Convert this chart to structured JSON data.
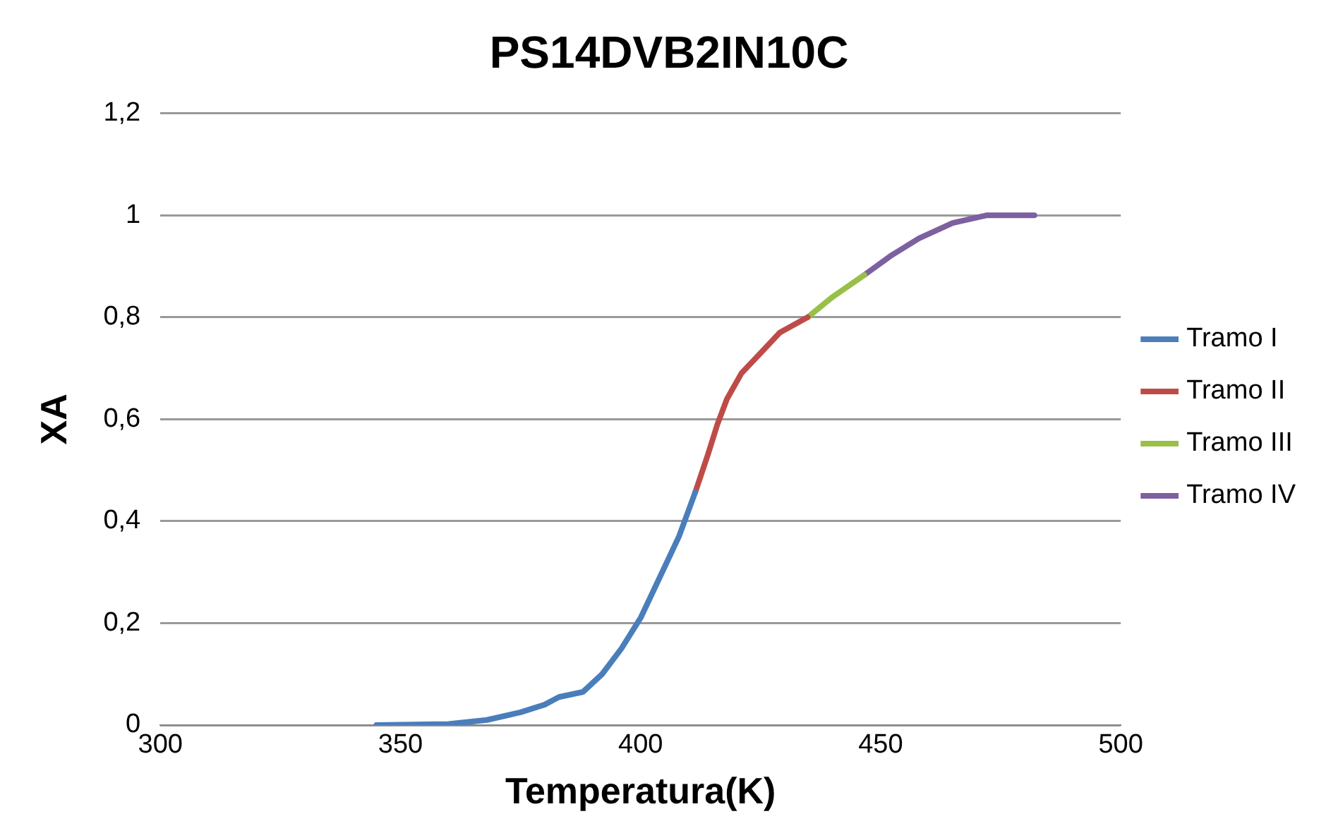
{
  "chart_data": {
    "type": "line",
    "title": "PS14DVB2IN10C",
    "xlabel": "Temperatura(K)",
    "ylabel": "XA",
    "xlim": [
      300,
      500
    ],
    "xticks": [
      300,
      350,
      400,
      450,
      500
    ],
    "ylim": [
      0,
      1.2
    ],
    "yticks": [
      0,
      {
        "value": 0.2,
        "label": "0,2"
      },
      {
        "value": 0.4,
        "label": "0,4"
      },
      {
        "value": 0.6,
        "label": "0,6"
      },
      {
        "value": 0.8,
        "label": "0,8"
      },
      1,
      {
        "value": 1.2,
        "label": "1,2"
      }
    ],
    "grid": "y",
    "legend": "right",
    "marker": "none",
    "series": [
      {
        "name": "Tramo I",
        "color": "#4a7ebb",
        "x": [
          345,
          360,
          368,
          375,
          380,
          383,
          388,
          392,
          396,
          400,
          404,
          408,
          411.4
        ],
        "values": [
          0,
          0.002,
          0.01,
          0.025,
          0.04,
          0.055,
          0.065,
          0.1,
          0.15,
          0.21,
          0.29,
          0.37,
          0.457
        ]
      },
      {
        "name": "Tramo II",
        "color": "#be4b48",
        "x": [
          411.4,
          414,
          416,
          418,
          421,
          425,
          429,
          434.8
        ],
        "values": [
          0.457,
          0.53,
          0.59,
          0.64,
          0.69,
          0.73,
          0.77,
          0.8
        ]
      },
      {
        "name": "Tramo III",
        "color": "#98c047",
        "x": [
          434.8,
          440,
          446.6
        ],
        "values": [
          0.8,
          0.84,
          0.883
        ]
      },
      {
        "name": "Tramo IV",
        "color": "#7d60a0",
        "x": [
          446.6,
          452,
          458,
          465,
          472,
          482
        ],
        "values": [
          0.883,
          0.92,
          0.955,
          0.985,
          1,
          1
        ]
      }
    ]
  }
}
